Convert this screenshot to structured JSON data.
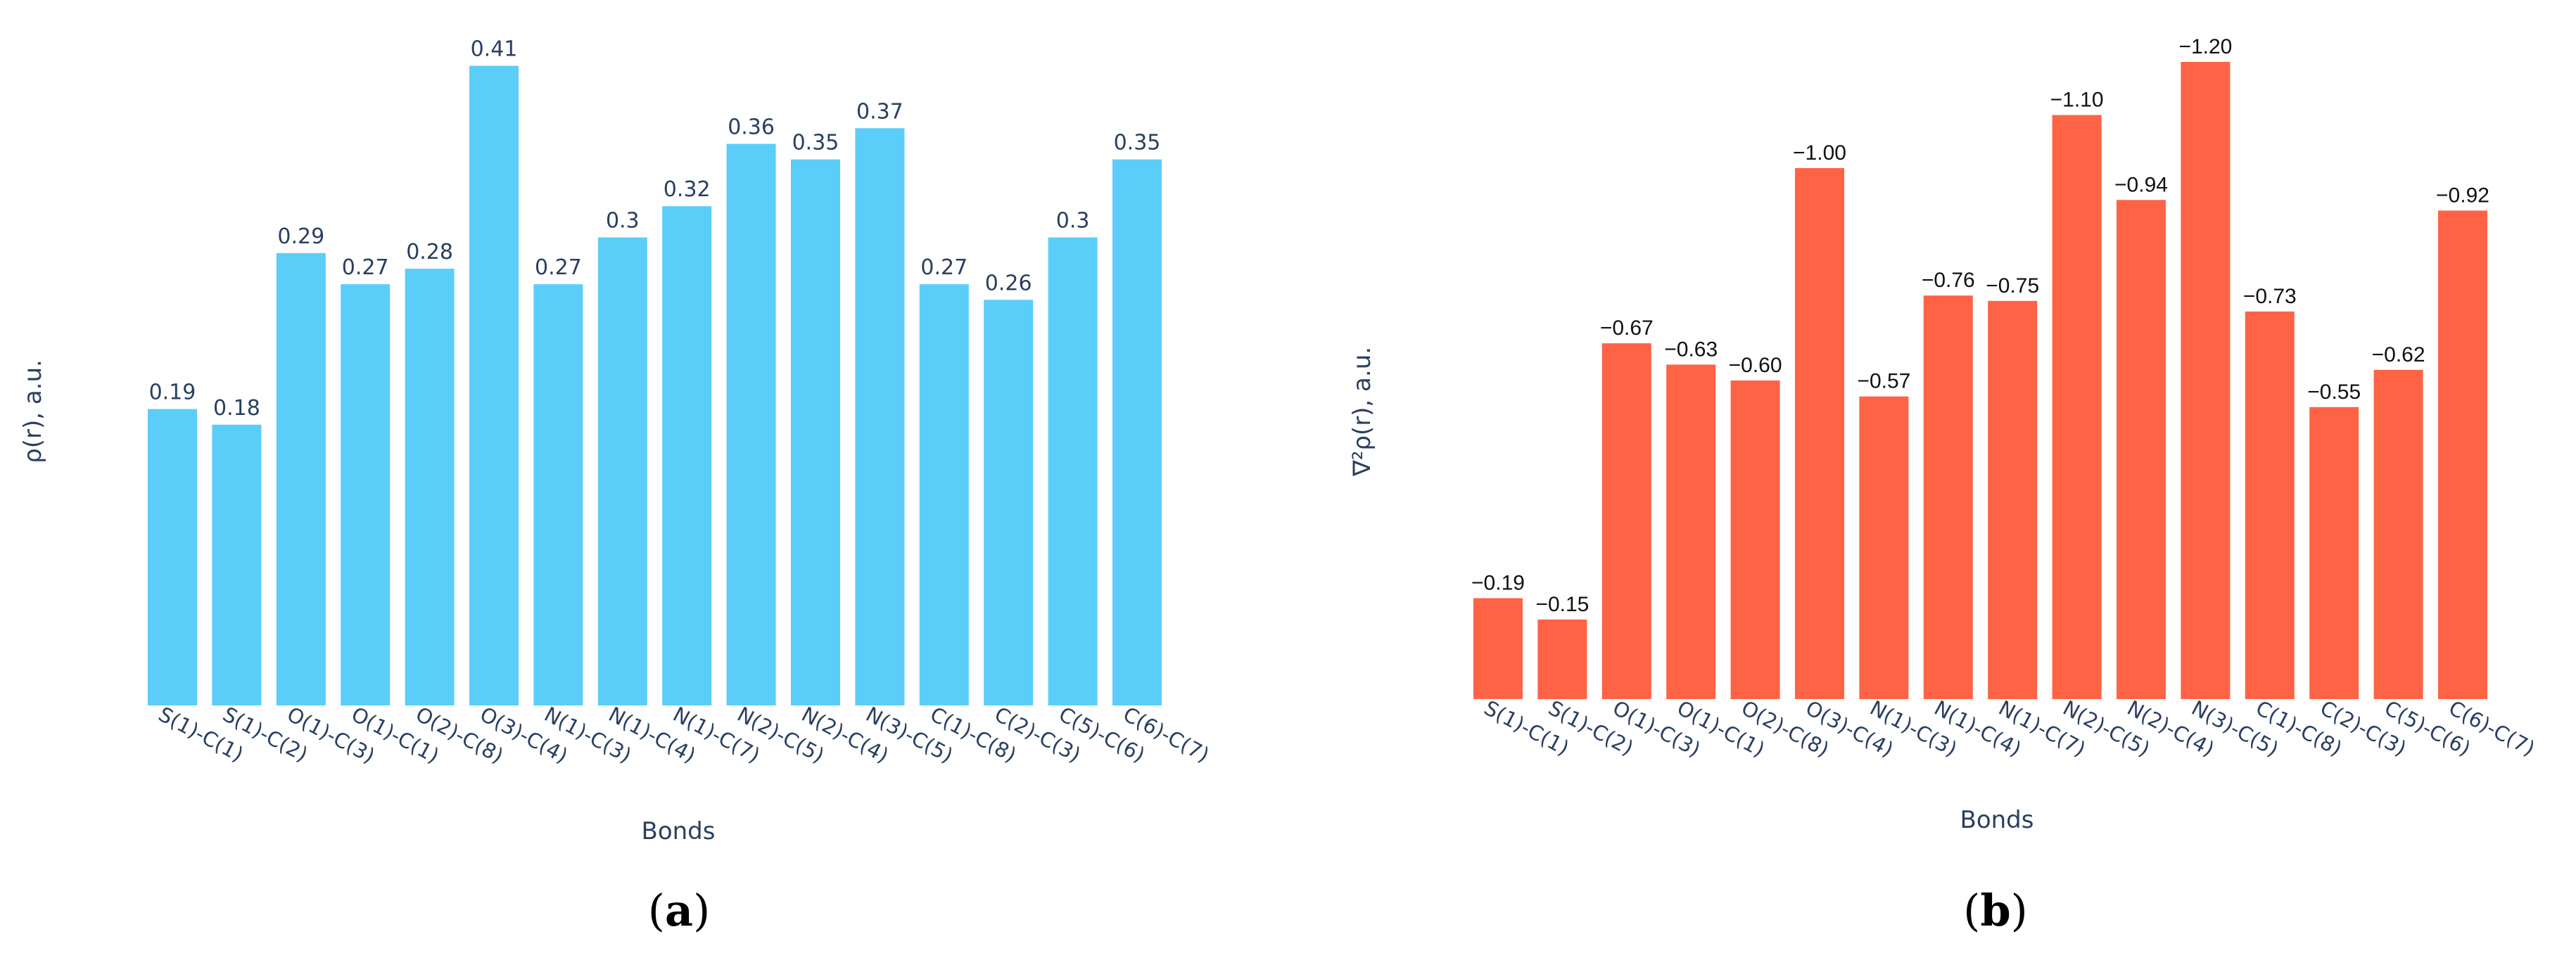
{
  "chart_data": [
    {
      "type": "bar",
      "panel": "(a)",
      "panel_letter": "a",
      "ylabel": "ρ(r), a.u.",
      "xlabel": "Bonds",
      "color": "#5bcdf9",
      "label_color": "#2a3f5f",
      "categories": [
        "S(1)-C(1)",
        "S(1)-C(2)",
        "O(1)-C(3)",
        "O(1)-C(1)",
        "O(2)-C(8)",
        "O(3)-C(4)",
        "N(1)-C(3)",
        "N(1)-C(4)",
        "N(1)-C(7)",
        "N(2)-C(5)",
        "N(2)-C(4)",
        "N(3)-C(5)",
        "C(1)-C(8)",
        "C(2)-C(3)",
        "C(5)-C(6)",
        "C(6)-C(7)"
      ],
      "values": [
        0.19,
        0.18,
        0.29,
        0.27,
        0.28,
        0.41,
        0.27,
        0.3,
        0.32,
        0.36,
        0.35,
        0.37,
        0.27,
        0.26,
        0.3,
        0.35
      ],
      "value_labels": [
        "0.19",
        "0.18",
        "0.29",
        "0.27",
        "0.28",
        "0.41",
        "0.27",
        "0.3",
        "0.32",
        "0.36",
        "0.35",
        "0.37",
        "0.27",
        "0.26",
        "0.3",
        "0.35"
      ],
      "grid": false
    },
    {
      "type": "bar",
      "panel": "(b)",
      "panel_letter": "b",
      "ylabel": "∇²ρ(r), a.u.",
      "xlabel": "Bonds",
      "color": "#fe6346",
      "label_color": "#111111",
      "categories": [
        "S(1)-C(1)",
        "S(1)-C(2)",
        "O(1)-C(3)",
        "O(1)-C(1)",
        "O(2)-C(8)",
        "O(3)-C(4)",
        "N(1)-C(3)",
        "N(1)-C(4)",
        "N(1)-C(7)",
        "N(2)-C(5)",
        "N(2)-C(4)",
        "N(3)-C(5)",
        "C(1)-C(8)",
        "C(2)-C(3)",
        "C(5)-C(6)",
        "C(6)-C(7)"
      ],
      "values": [
        -0.19,
        -0.15,
        -0.67,
        -0.63,
        -0.6,
        -1.0,
        -0.57,
        -0.76,
        -0.75,
        -1.1,
        -0.94,
        -1.2,
        -0.73,
        -0.55,
        -0.62,
        -0.92
      ],
      "value_labels": [
        "−0.19",
        "−0.15",
        "−0.67",
        "−0.63",
        "−0.60",
        "−1.00",
        "−0.57",
        "−0.76",
        "−0.75",
        "−1.10",
        "−0.94",
        "−1.20",
        "−0.73",
        "−0.55",
        "−0.62",
        "−0.92"
      ],
      "grid": false
    }
  ]
}
